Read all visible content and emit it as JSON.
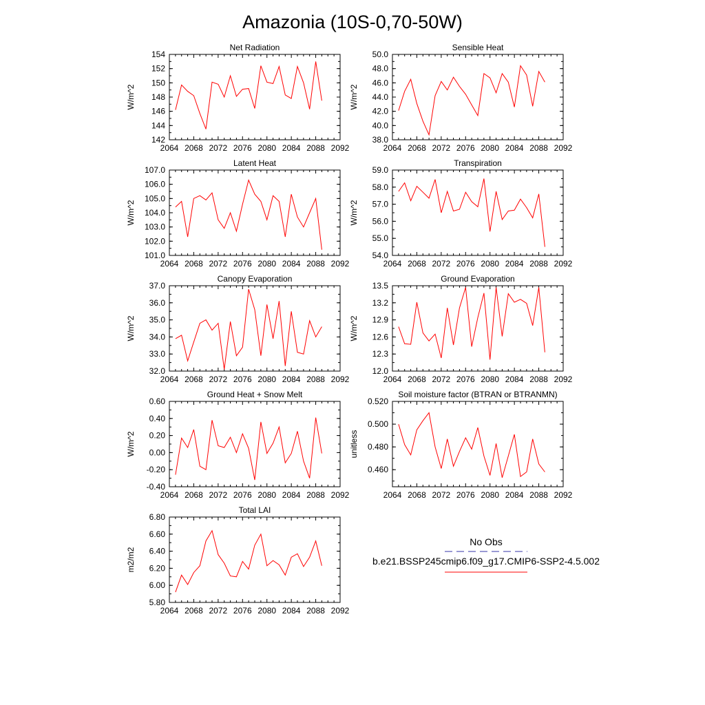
{
  "figure_title": "Amazonia (10S-0,70-50W)",
  "legend": {
    "items": [
      {
        "label": "No Obs",
        "color": "#3333aa",
        "style": "dashed"
      },
      {
        "label": "b.e21.BSSP245cmip6.f09_g17.CMIP6-SSP2-4.5.002",
        "color": "#ff0000",
        "style": "solid"
      }
    ]
  },
  "chart_data": [
    {
      "type": "line",
      "title": "Net Radiation",
      "xlabel": "",
      "ylabel": "W/m^2",
      "xlim": [
        2064,
        2092
      ],
      "ylim": [
        142,
        154
      ],
      "xticks": [
        "2064",
        "2068",
        "2072",
        "2076",
        "2080",
        "2084",
        "2088",
        "2092"
      ],
      "yticks": [
        "142",
        "144",
        "146",
        "148",
        "150",
        "152",
        "154"
      ],
      "series": [
        {
          "color": "#ff0000",
          "x": [
            2065,
            2066,
            2067,
            2068,
            2069,
            2070,
            2071,
            2072,
            2073,
            2074,
            2075,
            2076,
            2077,
            2078,
            2079,
            2080,
            2081,
            2082,
            2083,
            2084,
            2085,
            2086,
            2087,
            2088,
            2089
          ],
          "values": [
            146.2,
            149.7,
            148.8,
            148.2,
            145.7,
            143.5,
            150.1,
            149.8,
            148.0,
            151.0,
            148.1,
            149.1,
            149.2,
            146.4,
            152.4,
            150.1,
            149.9,
            152.3,
            148.3,
            147.8,
            152.3,
            150.0,
            146.3,
            153.0,
            147.5
          ]
        }
      ]
    },
    {
      "type": "line",
      "title": "Sensible Heat",
      "xlabel": "",
      "ylabel": "W/m^2",
      "xlim": [
        2064,
        2092
      ],
      "ylim": [
        38.0,
        50.0
      ],
      "xticks": [
        "2064",
        "2068",
        "2072",
        "2076",
        "2080",
        "2084",
        "2088",
        "2092"
      ],
      "yticks": [
        "38.0",
        "40.0",
        "42.0",
        "44.0",
        "46.0",
        "48.0",
        "50.0"
      ],
      "series": [
        {
          "color": "#ff0000",
          "x": [
            2065,
            2066,
            2067,
            2068,
            2069,
            2070,
            2071,
            2072,
            2073,
            2074,
            2075,
            2076,
            2077,
            2078,
            2079,
            2080,
            2081,
            2082,
            2083,
            2084,
            2085,
            2086,
            2087,
            2088,
            2089
          ],
          "values": [
            42.1,
            44.8,
            46.5,
            43.1,
            40.6,
            38.7,
            44.2,
            46.2,
            45.0,
            46.8,
            45.5,
            44.4,
            42.9,
            41.4,
            47.3,
            46.7,
            44.6,
            47.3,
            46.1,
            42.6,
            48.4,
            47.1,
            42.7,
            47.6,
            46.1
          ]
        }
      ]
    },
    {
      "type": "line",
      "title": "Latent Heat",
      "xlabel": "",
      "ylabel": "W/m^2",
      "xlim": [
        2064,
        2092
      ],
      "ylim": [
        101.0,
        107.0
      ],
      "xticks": [
        "2064",
        "2068",
        "2072",
        "2076",
        "2080",
        "2084",
        "2088",
        "2092"
      ],
      "yticks": [
        "101.0",
        "102.0",
        "103.0",
        "104.0",
        "105.0",
        "106.0",
        "107.0"
      ],
      "series": [
        {
          "color": "#ff0000",
          "x": [
            2065,
            2066,
            2067,
            2068,
            2069,
            2070,
            2071,
            2072,
            2073,
            2074,
            2075,
            2076,
            2077,
            2078,
            2079,
            2080,
            2081,
            2082,
            2083,
            2084,
            2085,
            2086,
            2087,
            2088,
            2089
          ],
          "values": [
            104.4,
            104.8,
            102.3,
            105.0,
            105.2,
            104.9,
            105.4,
            103.5,
            102.9,
            104.0,
            102.7,
            104.6,
            106.3,
            105.3,
            104.8,
            103.5,
            105.2,
            104.8,
            102.3,
            105.3,
            103.7,
            103.0,
            104.0,
            105.0,
            101.4
          ]
        }
      ]
    },
    {
      "type": "line",
      "title": "Transpiration",
      "xlabel": "",
      "ylabel": "W/m^2",
      "xlim": [
        2064,
        2092
      ],
      "ylim": [
        54.0,
        59.0
      ],
      "xticks": [
        "2064",
        "2068",
        "2072",
        "2076",
        "2080",
        "2084",
        "2088",
        "2092"
      ],
      "yticks": [
        "54.0",
        "55.0",
        "56.0",
        "57.0",
        "58.0",
        "59.0"
      ],
      "series": [
        {
          "color": "#ff0000",
          "x": [
            2065,
            2066,
            2067,
            2068,
            2069,
            2070,
            2071,
            2072,
            2073,
            2074,
            2075,
            2076,
            2077,
            2078,
            2079,
            2080,
            2081,
            2082,
            2083,
            2084,
            2085,
            2086,
            2087,
            2088,
            2089
          ],
          "values": [
            57.75,
            58.25,
            57.2,
            58.05,
            57.7,
            57.35,
            58.45,
            56.5,
            57.75,
            56.6,
            56.7,
            57.7,
            57.15,
            56.85,
            58.5,
            55.4,
            57.75,
            56.1,
            56.6,
            56.65,
            57.3,
            56.8,
            56.2,
            57.6,
            54.5
          ]
        }
      ]
    },
    {
      "type": "line",
      "title": "Canopy Evaporation",
      "xlabel": "",
      "ylabel": "W/m^2",
      "xlim": [
        2064,
        2092
      ],
      "ylim": [
        32.0,
        37.0
      ],
      "xticks": [
        "2064",
        "2068",
        "2072",
        "2076",
        "2080",
        "2084",
        "2088",
        "2092"
      ],
      "yticks": [
        "32.0",
        "33.0",
        "34.0",
        "35.0",
        "36.0",
        "37.0"
      ],
      "series": [
        {
          "color": "#ff0000",
          "x": [
            2065,
            2066,
            2067,
            2068,
            2069,
            2070,
            2071,
            2072,
            2073,
            2074,
            2075,
            2076,
            2077,
            2078,
            2079,
            2080,
            2081,
            2082,
            2083,
            2084,
            2085,
            2086,
            2087,
            2088,
            2089
          ],
          "values": [
            33.9,
            34.1,
            32.6,
            33.7,
            34.8,
            35.0,
            34.4,
            34.8,
            32.1,
            34.9,
            32.9,
            33.4,
            36.8,
            35.6,
            32.9,
            35.9,
            33.9,
            36.1,
            32.3,
            35.5,
            33.1,
            33.0,
            34.95,
            34.0,
            34.6
          ]
        }
      ]
    },
    {
      "type": "line",
      "title": "Ground Evaporation",
      "xlabel": "",
      "ylabel": "W/m^2",
      "xlim": [
        2064,
        2092
      ],
      "ylim": [
        12.0,
        13.5
      ],
      "xticks": [
        "2064",
        "2068",
        "2072",
        "2076",
        "2080",
        "2084",
        "2088",
        "2092"
      ],
      "yticks": [
        "12.0",
        "12.3",
        "12.6",
        "12.9",
        "13.2",
        "13.5"
      ],
      "series": [
        {
          "color": "#ff0000",
          "x": [
            2065,
            2066,
            2067,
            2068,
            2069,
            2070,
            2071,
            2072,
            2073,
            2074,
            2075,
            2076,
            2077,
            2078,
            2079,
            2080,
            2081,
            2082,
            2083,
            2084,
            2085,
            2086,
            2087,
            2088,
            2089
          ],
          "values": [
            12.78,
            12.48,
            12.47,
            13.21,
            12.67,
            12.53,
            12.65,
            12.23,
            13.11,
            12.46,
            13.11,
            13.47,
            12.43,
            12.94,
            13.37,
            12.2,
            13.47,
            12.61,
            13.36,
            13.21,
            13.26,
            13.19,
            12.8,
            13.47,
            12.33
          ]
        }
      ]
    },
    {
      "type": "line",
      "title": "Ground Heat + Snow Melt",
      "xlabel": "",
      "ylabel": "W/m^2",
      "xlim": [
        2064,
        2092
      ],
      "ylim": [
        -0.4,
        0.6
      ],
      "xticks": [
        "2064",
        "2068",
        "2072",
        "2076",
        "2080",
        "2084",
        "2088",
        "2092"
      ],
      "yticks": [
        "-0.40",
        "-0.20",
        "0.00",
        "0.20",
        "0.40",
        "0.60"
      ],
      "series": [
        {
          "color": "#ff0000",
          "x": [
            2065,
            2066,
            2067,
            2068,
            2069,
            2070,
            2071,
            2072,
            2073,
            2074,
            2075,
            2076,
            2077,
            2078,
            2079,
            2080,
            2081,
            2082,
            2083,
            2084,
            2085,
            2086,
            2087,
            2088,
            2089
          ],
          "values": [
            -0.26,
            0.17,
            0.06,
            0.27,
            -0.16,
            -0.2,
            0.38,
            0.08,
            0.06,
            0.18,
            0.0,
            0.22,
            0.05,
            -0.32,
            0.36,
            -0.01,
            0.11,
            0.3,
            -0.12,
            -0.01,
            0.25,
            -0.1,
            -0.3,
            0.41,
            -0.01
          ]
        }
      ]
    },
    {
      "type": "line",
      "title": "Soil moisture factor (BTRAN or BTRANMN)",
      "xlabel": "",
      "ylabel": "unitless",
      "xlim": [
        2064,
        2092
      ],
      "ylim": [
        0.445,
        0.52
      ],
      "xticks": [
        "2064",
        "2068",
        "2072",
        "2076",
        "2080",
        "2084",
        "2088",
        "2092"
      ],
      "yticks": [
        "0.460",
        "0.480",
        "0.500",
        "0.520"
      ],
      "series": [
        {
          "color": "#ff0000",
          "x": [
            2065,
            2066,
            2067,
            2068,
            2069,
            2070,
            2071,
            2072,
            2073,
            2074,
            2075,
            2076,
            2077,
            2078,
            2079,
            2080,
            2081,
            2082,
            2083,
            2084,
            2085,
            2086,
            2087,
            2088,
            2089
          ],
          "values": [
            0.5,
            0.482,
            0.473,
            0.495,
            0.503,
            0.51,
            0.48,
            0.461,
            0.487,
            0.463,
            0.476,
            0.488,
            0.478,
            0.497,
            0.472,
            0.455,
            0.483,
            0.453,
            0.472,
            0.491,
            0.454,
            0.458,
            0.487,
            0.465,
            0.458
          ]
        }
      ]
    },
    {
      "type": "line",
      "title": "Total LAI",
      "xlabel": "",
      "ylabel": "m2/m2",
      "xlim": [
        2064,
        2092
      ],
      "ylim": [
        5.8,
        6.8
      ],
      "xticks": [
        "2064",
        "2068",
        "2072",
        "2076",
        "2080",
        "2084",
        "2088",
        "2092"
      ],
      "yticks": [
        "5.80",
        "6.00",
        "6.20",
        "6.40",
        "6.60",
        "6.80"
      ],
      "series": [
        {
          "color": "#ff0000",
          "x": [
            2065,
            2066,
            2067,
            2068,
            2069,
            2070,
            2071,
            2072,
            2073,
            2074,
            2075,
            2076,
            2077,
            2078,
            2079,
            2080,
            2081,
            2082,
            2083,
            2084,
            2085,
            2086,
            2087,
            2088,
            2089
          ],
          "values": [
            5.92,
            6.12,
            6.01,
            6.15,
            6.23,
            6.52,
            6.64,
            6.36,
            6.26,
            6.11,
            6.1,
            6.28,
            6.19,
            6.47,
            6.6,
            6.23,
            6.29,
            6.24,
            6.12,
            6.33,
            6.37,
            6.22,
            6.33,
            6.52,
            6.23
          ]
        }
      ]
    }
  ]
}
